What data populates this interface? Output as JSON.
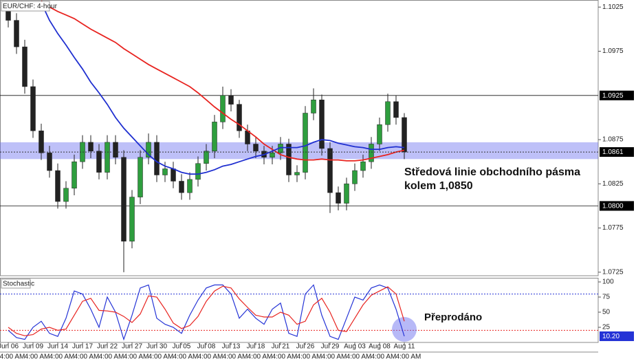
{
  "chart_data": [
    {
      "type": "candlestick",
      "title": "EUR/CHF: 4-hour",
      "x": [
        0,
        1,
        2,
        3,
        4,
        5,
        6,
        7,
        8,
        9,
        10,
        11,
        12,
        13,
        14,
        15,
        16,
        17,
        18,
        19,
        20,
        21,
        22,
        23,
        24,
        25,
        26,
        27,
        28,
        29,
        30,
        31,
        32,
        33,
        34,
        35,
        36,
        37,
        38,
        39,
        40,
        41,
        42,
        43,
        44,
        45,
        46,
        47,
        48
      ],
      "open": [
        1.1025,
        1.101,
        1.098,
        1.0935,
        1.0885,
        1.086,
        1.084,
        1.0805,
        1.082,
        1.085,
        1.0872,
        1.0862,
        1.0838,
        1.0872,
        1.0855,
        1.076,
        1.081,
        1.0855,
        1.0872,
        1.0835,
        1.0842,
        1.0828,
        1.0815,
        1.083,
        1.0848,
        1.0862,
        1.0895,
        1.0925,
        1.0915,
        1.0885,
        1.087,
        1.0862,
        1.0855,
        1.086,
        1.087,
        1.0835,
        1.0838,
        1.0905,
        1.092,
        1.0865,
        1.0815,
        1.0803,
        1.0825,
        1.084,
        1.085,
        1.087,
        1.0892,
        1.0918,
        1.09
      ],
      "high": [
        1.103,
        1.1018,
        1.0988,
        1.0943,
        1.0893,
        1.0868,
        1.0848,
        1.0828,
        1.0858,
        1.088,
        1.088,
        1.087,
        1.088,
        1.088,
        1.0863,
        1.0818,
        1.0863,
        1.0882,
        1.088,
        1.085,
        1.085,
        1.0836,
        1.0838,
        1.0856,
        1.087,
        1.0903,
        1.0935,
        1.0932,
        1.092,
        1.0892,
        1.0878,
        1.0868,
        1.0868,
        1.0878,
        1.0876,
        1.0846,
        1.0913,
        1.0933,
        1.0926,
        1.0872,
        1.0822,
        1.0832,
        1.0848,
        1.0858,
        1.0878,
        1.09,
        1.0927,
        1.0925,
        1.0905
      ],
      "low": [
        1.1002,
        1.0972,
        1.0927,
        1.0877,
        1.0852,
        1.0832,
        1.0797,
        1.0797,
        1.0812,
        1.0842,
        1.0854,
        1.083,
        1.083,
        1.0847,
        1.0725,
        1.0752,
        1.0802,
        1.0847,
        1.0827,
        1.0827,
        1.082,
        1.0807,
        1.0807,
        1.0822,
        1.084,
        1.0854,
        1.0887,
        1.0907,
        1.0877,
        1.0862,
        1.0854,
        1.0847,
        1.0847,
        1.0852,
        1.0827,
        1.0827,
        1.083,
        1.0897,
        1.0857,
        1.0792,
        1.0795,
        1.0795,
        1.0817,
        1.0832,
        1.0842,
        1.0862,
        1.0884,
        1.0892,
        1.0853
      ],
      "close": [
        1.101,
        1.098,
        1.0935,
        1.0885,
        1.086,
        1.084,
        1.0805,
        1.082,
        1.085,
        1.0872,
        1.0862,
        1.0838,
        1.0872,
        1.0855,
        1.076,
        1.081,
        1.0855,
        1.0872,
        1.0835,
        1.0842,
        1.0828,
        1.0815,
        1.083,
        1.0848,
        1.0862,
        1.0895,
        1.0925,
        1.0915,
        1.0885,
        1.087,
        1.0862,
        1.0855,
        1.086,
        1.087,
        1.0835,
        1.0838,
        1.0905,
        1.092,
        1.0865,
        1.0815,
        1.0803,
        1.0825,
        1.084,
        1.085,
        1.087,
        1.0892,
        1.0918,
        1.09,
        1.0861
      ],
      "up_color": "#2e9e3e",
      "down_color": "#222222",
      "lines": [
        {
          "color": "#e8231f",
          "values": [
            null,
            null,
            null,
            null,
            1.1032,
            1.1025,
            1.102,
            1.1016,
            1.1012,
            1.1006,
            1.1,
            1.0995,
            1.099,
            1.0985,
            1.0978,
            1.0972,
            1.0966,
            1.096,
            1.0955,
            1.095,
            1.0945,
            1.094,
            1.0935,
            1.0928,
            1.092,
            1.0912,
            1.0905,
            1.0898,
            1.0892,
            1.0885,
            1.0878,
            1.087,
            1.0864,
            1.0858,
            1.0855,
            1.0853,
            1.0852,
            1.0852,
            1.0853,
            1.0852,
            1.0852,
            1.0851,
            1.0851,
            1.0852,
            1.0854,
            1.0856,
            1.0858,
            1.0861,
            1.0863
          ]
        },
        {
          "color": "#1f2fd0",
          "values": [
            null,
            null,
            null,
            null,
            1.103,
            1.101,
            1.0995,
            1.0982,
            1.0968,
            1.0955,
            1.094,
            1.0928,
            1.0915,
            1.09,
            1.0888,
            1.0878,
            1.0868,
            1.0858,
            1.085,
            1.0845,
            1.0842,
            1.0838,
            1.0836,
            1.0836,
            1.0838,
            1.0841,
            1.0845,
            1.0847,
            1.085,
            1.0853,
            1.0856,
            1.0858,
            1.0862,
            1.0866,
            1.0866,
            1.0866,
            1.0868,
            1.0872,
            1.0875,
            1.0874,
            1.0871,
            1.0869,
            1.0867,
            1.0866,
            1.0864,
            1.0864,
            1.0866,
            1.0867,
            1.0866
          ]
        }
      ],
      "xlim": [
        -1,
        71.5
      ],
      "ylim": [
        1.0721,
        1.1033
      ],
      "yticks": [
        1.0725,
        1.0775,
        1.0825,
        1.0875,
        1.0975,
        1.1025
      ],
      "levels": [
        1.0925,
        {
          "value": 1.08,
          "label": "1.0800"
        }
      ],
      "last_price": 1.0861,
      "zone": {
        "from": 1.0853,
        "to": 1.0872,
        "color": "#6f74f0"
      },
      "annotation": [
        "Středová linie obchodního pásma",
        "kolem 1,0850"
      ]
    },
    {
      "type": "line",
      "title": "Stochastic",
      "x": [
        0,
        1,
        2,
        3,
        4,
        5,
        6,
        7,
        8,
        9,
        10,
        11,
        12,
        13,
        14,
        15,
        16,
        17,
        18,
        19,
        20,
        21,
        22,
        23,
        24,
        25,
        26,
        27,
        28,
        29,
        30,
        31,
        32,
        33,
        34,
        35,
        36,
        37,
        38,
        39,
        40,
        41,
        42,
        43,
        44,
        45,
        46,
        47,
        48
      ],
      "series": [
        {
          "color": "#2433d6",
          "values": [
            20,
            8,
            5,
            25,
            35,
            15,
            10,
            40,
            85,
            80,
            55,
            25,
            75,
            50,
            5,
            45,
            90,
            95,
            40,
            30,
            25,
            15,
            45,
            70,
            90,
            95,
            95,
            80,
            40,
            55,
            40,
            30,
            55,
            65,
            15,
            10,
            80,
            95,
            45,
            10,
            5,
            40,
            75,
            70,
            90,
            95,
            90,
            55,
            10.2
          ]
        },
        {
          "color": "#e8231f",
          "values": [
            25,
            15,
            11,
            13,
            22,
            25,
            20,
            22,
            45,
            68,
            73,
            53,
            52,
            50,
            43,
            33,
            47,
            77,
            75,
            55,
            32,
            23,
            28,
            43,
            68,
            85,
            93,
            90,
            72,
            58,
            45,
            42,
            42,
            50,
            45,
            30,
            35,
            62,
            73,
            50,
            20,
            18,
            40,
            62,
            78,
            85,
            92,
            80,
            35
          ]
        }
      ],
      "xlim": [
        -1,
        71.5
      ],
      "ylim": [
        0,
        105.7
      ],
      "yticks": [
        25,
        50,
        75,
        100
      ],
      "levels": [
        {
          "value": 80,
          "color": "#2433d6"
        },
        {
          "value": 20,
          "color": "#e8231f"
        }
      ],
      "last_value": {
        "value": 10.2,
        "label": "10.20"
      },
      "xticks": [
        {
          "value": 0,
          "label": "Jun 06"
        },
        {
          "value": 3,
          "label": "Jun 09"
        },
        {
          "value": 6,
          "label": "Jun 14"
        },
        {
          "value": 9,
          "label": "Jun 17"
        },
        {
          "value": 12,
          "label": "Jun 22"
        },
        {
          "value": 15,
          "label": "Jun 27"
        },
        {
          "value": 18,
          "label": "Jun 30"
        },
        {
          "value": 21,
          "label": "Jul 05"
        },
        {
          "value": 24,
          "label": "Jul 08"
        },
        {
          "value": 27,
          "label": "Jul 13"
        },
        {
          "value": 30,
          "label": "Jul 18"
        },
        {
          "value": 33,
          "label": "Jul 21"
        },
        {
          "value": 36,
          "label": "Jul 26"
        },
        {
          "value": 39,
          "label": "Jul 29"
        },
        {
          "value": 42,
          "label": "Aug 03"
        },
        {
          "value": 45,
          "label": "Aug 08"
        },
        {
          "value": 48,
          "label": "Aug 11"
        }
      ],
      "time_labels": [
        "4:00 AM",
        "4:00 AM",
        "4:00 AM",
        "4:00 AM",
        "4:00 AM",
        "4:00 AM",
        "4:00 AM",
        "4:00 AM",
        "4:00 AM",
        "4:00 AM",
        "4:00 AM",
        "4:00 AM",
        "4:00 AM",
        "4:00 AM",
        "4:00 AM",
        "4:00 AM",
        "4:00 AM"
      ],
      "annotation": "Přeprodáno"
    }
  ]
}
